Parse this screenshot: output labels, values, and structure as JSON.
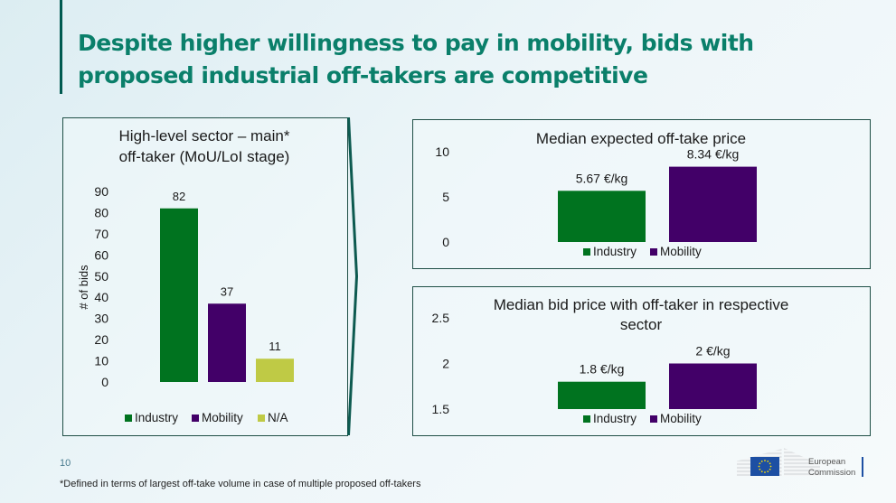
{
  "title": "Despite higher willingness to pay in mobility, bids with proposed industrial off-takers are competitive",
  "page_number": "10",
  "footnote": "*Defined in terms of largest off-take volume in case of multiple proposed off-takers",
  "logo": {
    "line1": "European",
    "line2": "Commission"
  },
  "colors": {
    "industry": "#00731f",
    "mobility": "#420068",
    "na": "#bfca45"
  },
  "chart_data": [
    {
      "type": "bar",
      "title_lines": [
        "High-level sector – main*",
        "off-taker (MoU/LoI stage)"
      ],
      "ylabel": "# of bids",
      "categories": [
        "Industry",
        "Mobility",
        "N/A"
      ],
      "values": [
        82,
        37,
        11
      ],
      "labels": [
        "82",
        "37",
        "11"
      ],
      "yticks": [
        "0",
        "10",
        "20",
        "30",
        "40",
        "50",
        "60",
        "70",
        "80",
        "90"
      ],
      "ylim": [
        0,
        90
      ],
      "legend": [
        "Industry",
        "Mobility",
        "N/A"
      ],
      "legend_position": "bottom"
    },
    {
      "type": "bar",
      "title_lines": [
        "Median expected off-take price"
      ],
      "categories": [
        "Industry",
        "Mobility"
      ],
      "values": [
        5.67,
        8.34
      ],
      "labels": [
        "5.67 €/kg",
        "8.34 €/kg"
      ],
      "yticks": [
        "0",
        "5",
        "10"
      ],
      "ylim": [
        0,
        10
      ],
      "legend": [
        "Industry",
        "Mobility"
      ],
      "legend_position": "bottom"
    },
    {
      "type": "bar",
      "title_lines": [
        "Median bid price with off-taker in respective",
        "sector"
      ],
      "categories": [
        "Industry",
        "Mobility"
      ],
      "values": [
        1.8,
        2
      ],
      "labels": [
        "1.8 €/kg",
        "2 €/kg"
      ],
      "yticks": [
        "1.5",
        "2",
        "2.5"
      ],
      "ylim": [
        1.5,
        2.5
      ],
      "legend": [
        "Industry",
        "Mobility"
      ],
      "legend_position": "bottom"
    }
  ]
}
